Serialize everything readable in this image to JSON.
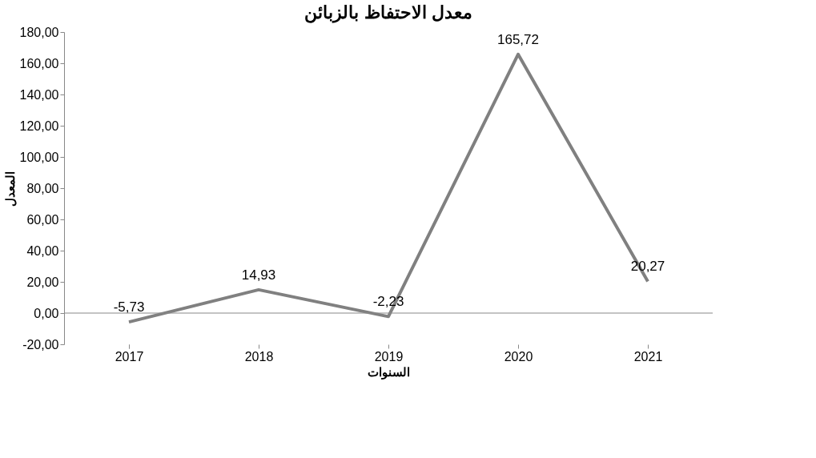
{
  "chart_data": {
    "type": "line",
    "title": "معدل الاحتفاظ بالزبائن",
    "xlabel": "السنوات",
    "ylabel": "المعدل",
    "categories": [
      "2017",
      "2018",
      "2019",
      "2020",
      "2021"
    ],
    "series": [
      {
        "color": "#808080",
        "values": [
          -5.73,
          14.93,
          -2.23,
          165.72,
          20.27
        ],
        "value_labels": [
          "-5,73",
          "14,93",
          "-2,23",
          "165,72",
          "20,27"
        ]
      }
    ],
    "ylim": [
      -20,
      180
    ],
    "yticks": [
      {
        "value": -20,
        "label": "-20,00"
      },
      {
        "value": 0,
        "label": "0,00"
      },
      {
        "value": 20,
        "label": "20,00"
      },
      {
        "value": 40,
        "label": "40,00"
      },
      {
        "value": 60,
        "label": "60,00"
      },
      {
        "value": 80,
        "label": "80,00"
      },
      {
        "value": 100,
        "label": "100,00"
      },
      {
        "value": 120,
        "label": "120,00"
      },
      {
        "value": 140,
        "label": "140,00"
      },
      {
        "value": 160,
        "label": "160,00"
      },
      {
        "value": 180,
        "label": "180,00"
      }
    ],
    "ref_lines": [
      {
        "axis": "y",
        "value": 0,
        "color": "#888888"
      }
    ],
    "grid": false,
    "marker": "none",
    "line_style": "solid"
  }
}
